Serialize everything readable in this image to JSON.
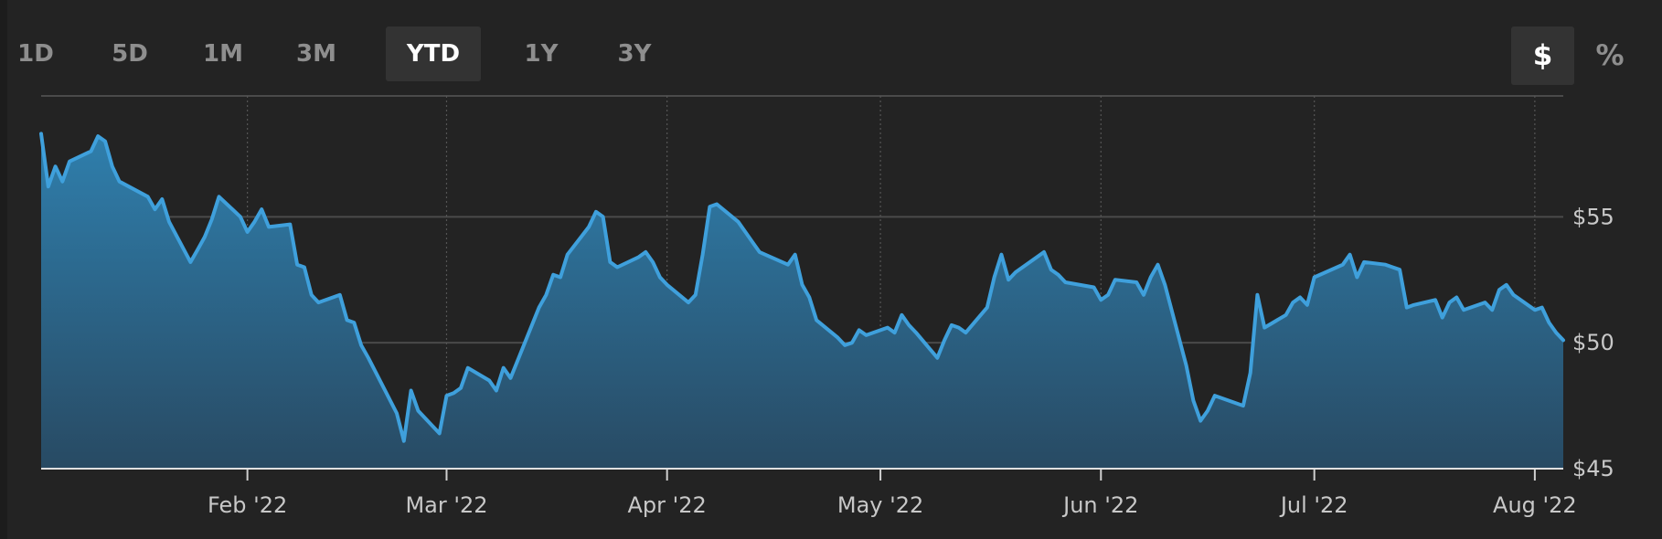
{
  "range_buttons": [
    {
      "label": "1D",
      "active": false
    },
    {
      "label": "5D",
      "active": false
    },
    {
      "label": "1M",
      "active": false
    },
    {
      "label": "3M",
      "active": false
    },
    {
      "label": "YTD",
      "active": true
    },
    {
      "label": "1Y",
      "active": false
    },
    {
      "label": "3Y",
      "active": false
    }
  ],
  "unit_toggle": {
    "dollar_label": "$",
    "percent_label": "%",
    "active": "dollar"
  },
  "colors": {
    "line": "#3fa0dc",
    "fill_top": "#2f7fad",
    "fill_bottom": "#284a63",
    "grid": "#4a4a4a",
    "background": "#232323"
  },
  "chart_data": {
    "type": "area",
    "title": "",
    "xlabel": "",
    "ylabel": "",
    "ylim": [
      45,
      59.8
    ],
    "yticks": [
      {
        "value": 45,
        "label": "$45"
      },
      {
        "value": 50,
        "label": "$50"
      },
      {
        "value": 55,
        "label": "$55"
      }
    ],
    "xlim": [
      "2022-01-03",
      "2022-08-05"
    ],
    "xticks": [
      {
        "date": "2022-02-01",
        "label": "Feb '22"
      },
      {
        "date": "2022-03-01",
        "label": "Mar '22"
      },
      {
        "date": "2022-04-01",
        "label": "Apr '22"
      },
      {
        "date": "2022-05-01",
        "label": "May '22"
      },
      {
        "date": "2022-06-01",
        "label": "Jun '22"
      },
      {
        "date": "2022-07-01",
        "label": "Jul '22"
      },
      {
        "date": "2022-08-01",
        "label": "Aug '22"
      }
    ],
    "grid": true,
    "legend": "none",
    "series": [
      {
        "x": [
          "2022-01-03",
          "2022-01-04",
          "2022-01-05",
          "2022-01-06",
          "2022-01-07",
          "2022-01-10",
          "2022-01-11",
          "2022-01-12",
          "2022-01-13",
          "2022-01-14",
          "2022-01-18",
          "2022-01-19",
          "2022-01-20",
          "2022-01-21",
          "2022-01-24",
          "2022-01-25",
          "2022-01-26",
          "2022-01-27",
          "2022-01-28",
          "2022-01-31",
          "2022-02-01",
          "2022-02-02",
          "2022-02-03",
          "2022-02-04",
          "2022-02-07",
          "2022-02-08",
          "2022-02-09",
          "2022-02-10",
          "2022-02-11",
          "2022-02-14",
          "2022-02-15",
          "2022-02-16",
          "2022-02-17",
          "2022-02-18",
          "2022-02-22",
          "2022-02-23",
          "2022-02-24",
          "2022-02-25",
          "2022-02-28",
          "2022-03-01",
          "2022-03-02",
          "2022-03-03",
          "2022-03-04",
          "2022-03-07",
          "2022-03-08",
          "2022-03-09",
          "2022-03-10",
          "2022-03-11",
          "2022-03-14",
          "2022-03-15",
          "2022-03-16",
          "2022-03-17",
          "2022-03-18",
          "2022-03-21",
          "2022-03-22",
          "2022-03-23",
          "2022-03-24",
          "2022-03-25",
          "2022-03-28",
          "2022-03-29",
          "2022-03-30",
          "2022-03-31",
          "2022-04-01",
          "2022-04-04",
          "2022-04-05",
          "2022-04-06",
          "2022-04-07",
          "2022-04-08",
          "2022-04-11",
          "2022-04-12",
          "2022-04-13",
          "2022-04-14",
          "2022-04-18",
          "2022-04-19",
          "2022-04-20",
          "2022-04-21",
          "2022-04-22",
          "2022-04-25",
          "2022-04-26",
          "2022-04-27",
          "2022-04-28",
          "2022-04-29",
          "2022-05-02",
          "2022-05-03",
          "2022-05-04",
          "2022-05-05",
          "2022-05-06",
          "2022-05-09",
          "2022-05-10",
          "2022-05-11",
          "2022-05-12",
          "2022-05-13",
          "2022-05-16",
          "2022-05-17",
          "2022-05-18",
          "2022-05-19",
          "2022-05-20",
          "2022-05-23",
          "2022-05-24",
          "2022-05-25",
          "2022-05-26",
          "2022-05-27",
          "2022-05-31",
          "2022-06-01",
          "2022-06-02",
          "2022-06-03",
          "2022-06-06",
          "2022-06-07",
          "2022-06-08",
          "2022-06-09",
          "2022-06-10",
          "2022-06-13",
          "2022-06-14",
          "2022-06-15",
          "2022-06-16",
          "2022-06-17",
          "2022-06-21",
          "2022-06-22",
          "2022-06-23",
          "2022-06-24",
          "2022-06-27",
          "2022-06-28",
          "2022-06-29",
          "2022-06-30",
          "2022-07-01",
          "2022-07-05",
          "2022-07-06",
          "2022-07-07",
          "2022-07-08",
          "2022-07-11",
          "2022-07-12",
          "2022-07-13",
          "2022-07-14",
          "2022-07-15",
          "2022-07-18",
          "2022-07-19",
          "2022-07-20",
          "2022-07-21",
          "2022-07-22",
          "2022-07-25",
          "2022-07-26",
          "2022-07-27",
          "2022-07-28",
          "2022-07-29",
          "2022-08-01",
          "2022-08-02",
          "2022-08-03",
          "2022-08-04",
          "2022-08-05"
        ],
        "values": [
          58.3,
          56.2,
          57.0,
          56.4,
          57.2,
          57.6,
          58.2,
          58.0,
          57.0,
          56.4,
          55.8,
          55.3,
          55.7,
          54.8,
          53.2,
          53.7,
          54.2,
          54.9,
          55.8,
          55.0,
          54.4,
          54.8,
          55.3,
          54.6,
          54.7,
          53.1,
          53.0,
          51.9,
          51.6,
          51.9,
          50.9,
          50.8,
          49.9,
          49.4,
          47.2,
          46.1,
          48.1,
          47.3,
          46.4,
          47.9,
          48.0,
          48.2,
          49.0,
          48.5,
          48.1,
          49.0,
          48.6,
          49.3,
          51.4,
          51.9,
          52.7,
          52.6,
          53.5,
          54.6,
          55.2,
          55.0,
          53.2,
          53.0,
          53.4,
          53.6,
          53.2,
          52.6,
          52.3,
          51.6,
          51.9,
          53.5,
          55.4,
          55.5,
          54.8,
          54.4,
          54.0,
          53.6,
          53.1,
          53.5,
          52.3,
          51.8,
          50.9,
          50.2,
          49.9,
          50.0,
          50.5,
          50.3,
          50.6,
          50.4,
          51.1,
          50.7,
          50.4,
          49.4,
          50.1,
          50.7,
          50.6,
          50.4,
          51.4,
          52.6,
          53.5,
          52.5,
          52.8,
          53.4,
          53.6,
          52.9,
          52.7,
          52.4,
          52.2,
          51.7,
          51.9,
          52.5,
          52.4,
          51.9,
          52.6,
          53.1,
          52.3,
          49.1,
          47.7,
          46.9,
          47.3,
          47.9,
          47.5,
          48.8,
          51.9,
          50.6,
          51.1,
          51.6,
          51.8,
          51.5,
          52.6,
          53.1,
          53.5,
          52.6,
          53.2,
          53.1,
          53.0,
          52.9,
          51.4,
          51.5,
          51.7,
          51.0,
          51.6,
          51.8,
          51.3,
          51.6,
          51.3,
          52.1,
          52.3,
          51.9,
          51.3,
          51.4,
          50.8,
          50.4,
          50.1
        ]
      }
    ]
  }
}
